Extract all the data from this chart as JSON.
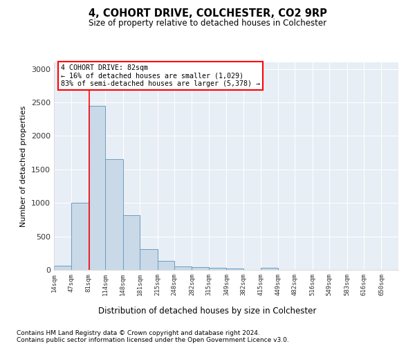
{
  "title1": "4, COHORT DRIVE, COLCHESTER, CO2 9RP",
  "title2": "Size of property relative to detached houses in Colchester",
  "xlabel": "Distribution of detached houses by size in Colchester",
  "ylabel": "Number of detached properties",
  "footnote1": "Contains HM Land Registry data © Crown copyright and database right 2024.",
  "footnote2": "Contains public sector information licensed under the Open Government Licence v3.0.",
  "annotation_title": "4 COHORT DRIVE: 82sqm",
  "annotation_line1": "← 16% of detached houses are smaller (1,029)",
  "annotation_line2": "83% of semi-detached houses are larger (5,378) →",
  "bar_color": "#c9d9e8",
  "bar_edge_color": "#6a9ec0",
  "red_line_x": 82,
  "bin_edges": [
    14,
    47,
    81,
    114,
    148,
    181,
    215,
    248,
    282,
    315,
    349,
    382,
    415,
    449,
    482,
    516,
    549,
    583,
    616,
    650,
    683
  ],
  "bar_values": [
    60,
    1000,
    2450,
    1650,
    820,
    305,
    130,
    55,
    45,
    30,
    25,
    0,
    35,
    0,
    0,
    0,
    0,
    0,
    0,
    0
  ],
  "ylim": [
    0,
    3100
  ],
  "yticks": [
    0,
    500,
    1000,
    1500,
    2000,
    2500,
    3000
  ],
  "background_color": "#e8eef5"
}
